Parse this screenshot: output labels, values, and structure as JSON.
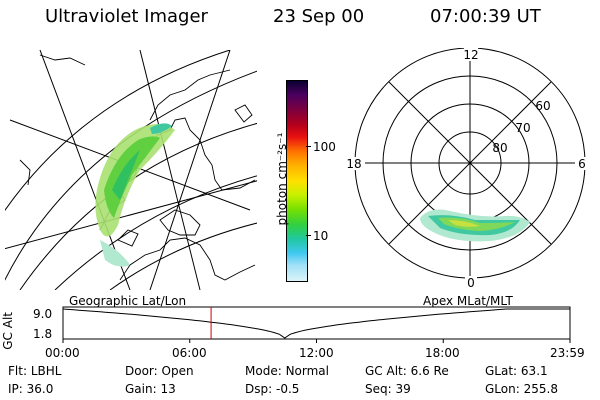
{
  "header": {
    "instrument": "Ultraviolet Imager",
    "date": "23 Sep 00",
    "time": "07:00:39 UT"
  },
  "colorbar": {
    "unit_label": "photon cm⁻²s⁻¹",
    "ticks": [
      "100",
      "10"
    ],
    "scale": "log",
    "colors": [
      "#0a0030",
      "#4a0060",
      "#7a0040",
      "#b4001c",
      "#e81010",
      "#ff7000",
      "#ffb000",
      "#ffe000",
      "#c8f000",
      "#78e000",
      "#30d040",
      "#20c8a0",
      "#40c8f0",
      "#a0e0f8",
      "#dcf4f8"
    ]
  },
  "left_panel": {
    "label": "Geographic Lat/Lon",
    "projection": "geographic"
  },
  "right_panel": {
    "label": "Apex MLat/MLT",
    "mlt_labels": {
      "top": "12",
      "left": "18",
      "right": "6",
      "bottom": "0"
    },
    "lat_labels": [
      "60",
      "70",
      "80"
    ]
  },
  "timeline": {
    "ylabel": "GC Alt",
    "ytick_top": "9.0",
    "ytick_bottom": "1.8",
    "ticks": [
      "00:00",
      "06:00",
      "12:00",
      "18:00",
      "23:59"
    ],
    "current_time_hours": 7.01,
    "marker_color": "#cc0000"
  },
  "status": {
    "row1": [
      {
        "label": "Flt:",
        "value": "LBHL"
      },
      {
        "label": "Door:",
        "value": "Open"
      },
      {
        "label": "Mode:",
        "value": "Normal"
      },
      {
        "label": "GC Alt:",
        "value": "6.6 Re"
      },
      {
        "label": "GLat:",
        "value": "63.1"
      }
    ],
    "row2": [
      {
        "label": "IP:",
        "value": "36.0"
      },
      {
        "label": "Gain:",
        "value": "13"
      },
      {
        "label": "Dsp:",
        "value": "-0.5"
      },
      {
        "label": "Seq:",
        "value": "39"
      },
      {
        "label": "GLon:",
        "value": "255.8"
      }
    ]
  }
}
